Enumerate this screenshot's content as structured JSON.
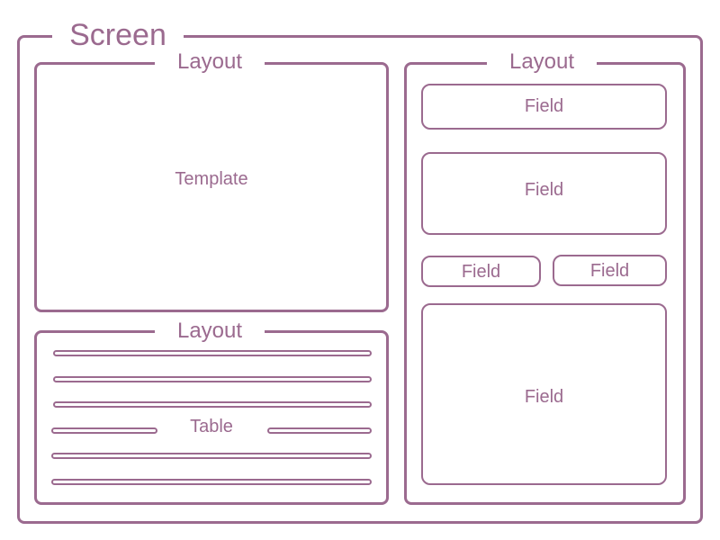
{
  "screen": {
    "title": "Screen"
  },
  "template_panel": {
    "title": "Layout",
    "content_label": "Template"
  },
  "table_panel": {
    "title": "Layout",
    "content_label": "Table"
  },
  "form_panel": {
    "title": "Layout",
    "fields": [
      {
        "label": "Field"
      },
      {
        "label": "Field"
      },
      {
        "label": "Field"
      },
      {
        "label": "Field"
      },
      {
        "label": "Field"
      }
    ]
  },
  "colors": {
    "stroke": "#9b6a8f",
    "background": "#ffffff"
  }
}
